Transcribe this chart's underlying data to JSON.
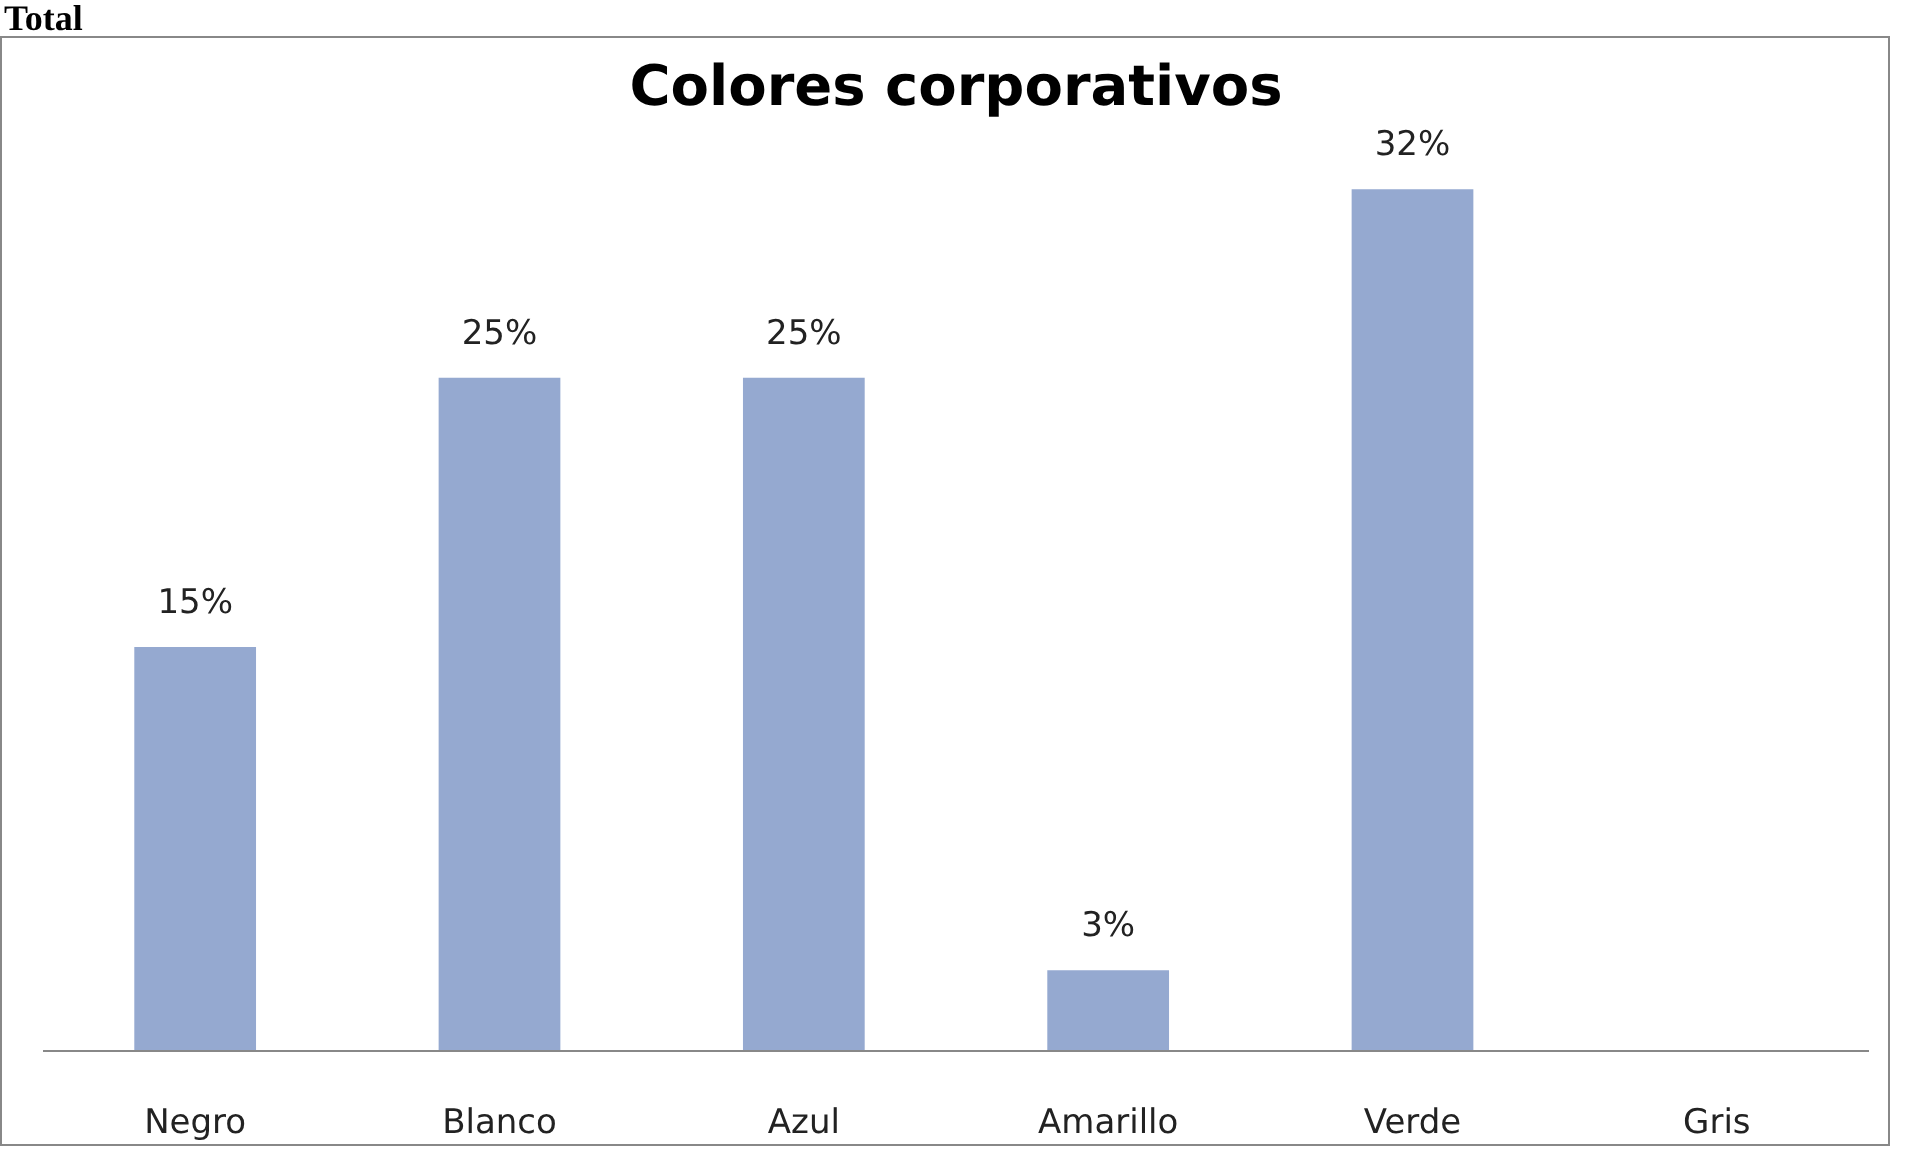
{
  "chart_data": {
    "type": "bar",
    "title": "Colores corporativos",
    "categories": [
      "Negro",
      "Blanco",
      "Azul",
      "Amarillo",
      "Verde",
      "Gris"
    ],
    "values": [
      15,
      25,
      25,
      3,
      32,
      0
    ],
    "value_labels": [
      "15%",
      "25%",
      "25%",
      "3%",
      "32%",
      null
    ],
    "color": "#95a9d0",
    "annotations": [
      "Total"
    ],
    "grid": false
  }
}
